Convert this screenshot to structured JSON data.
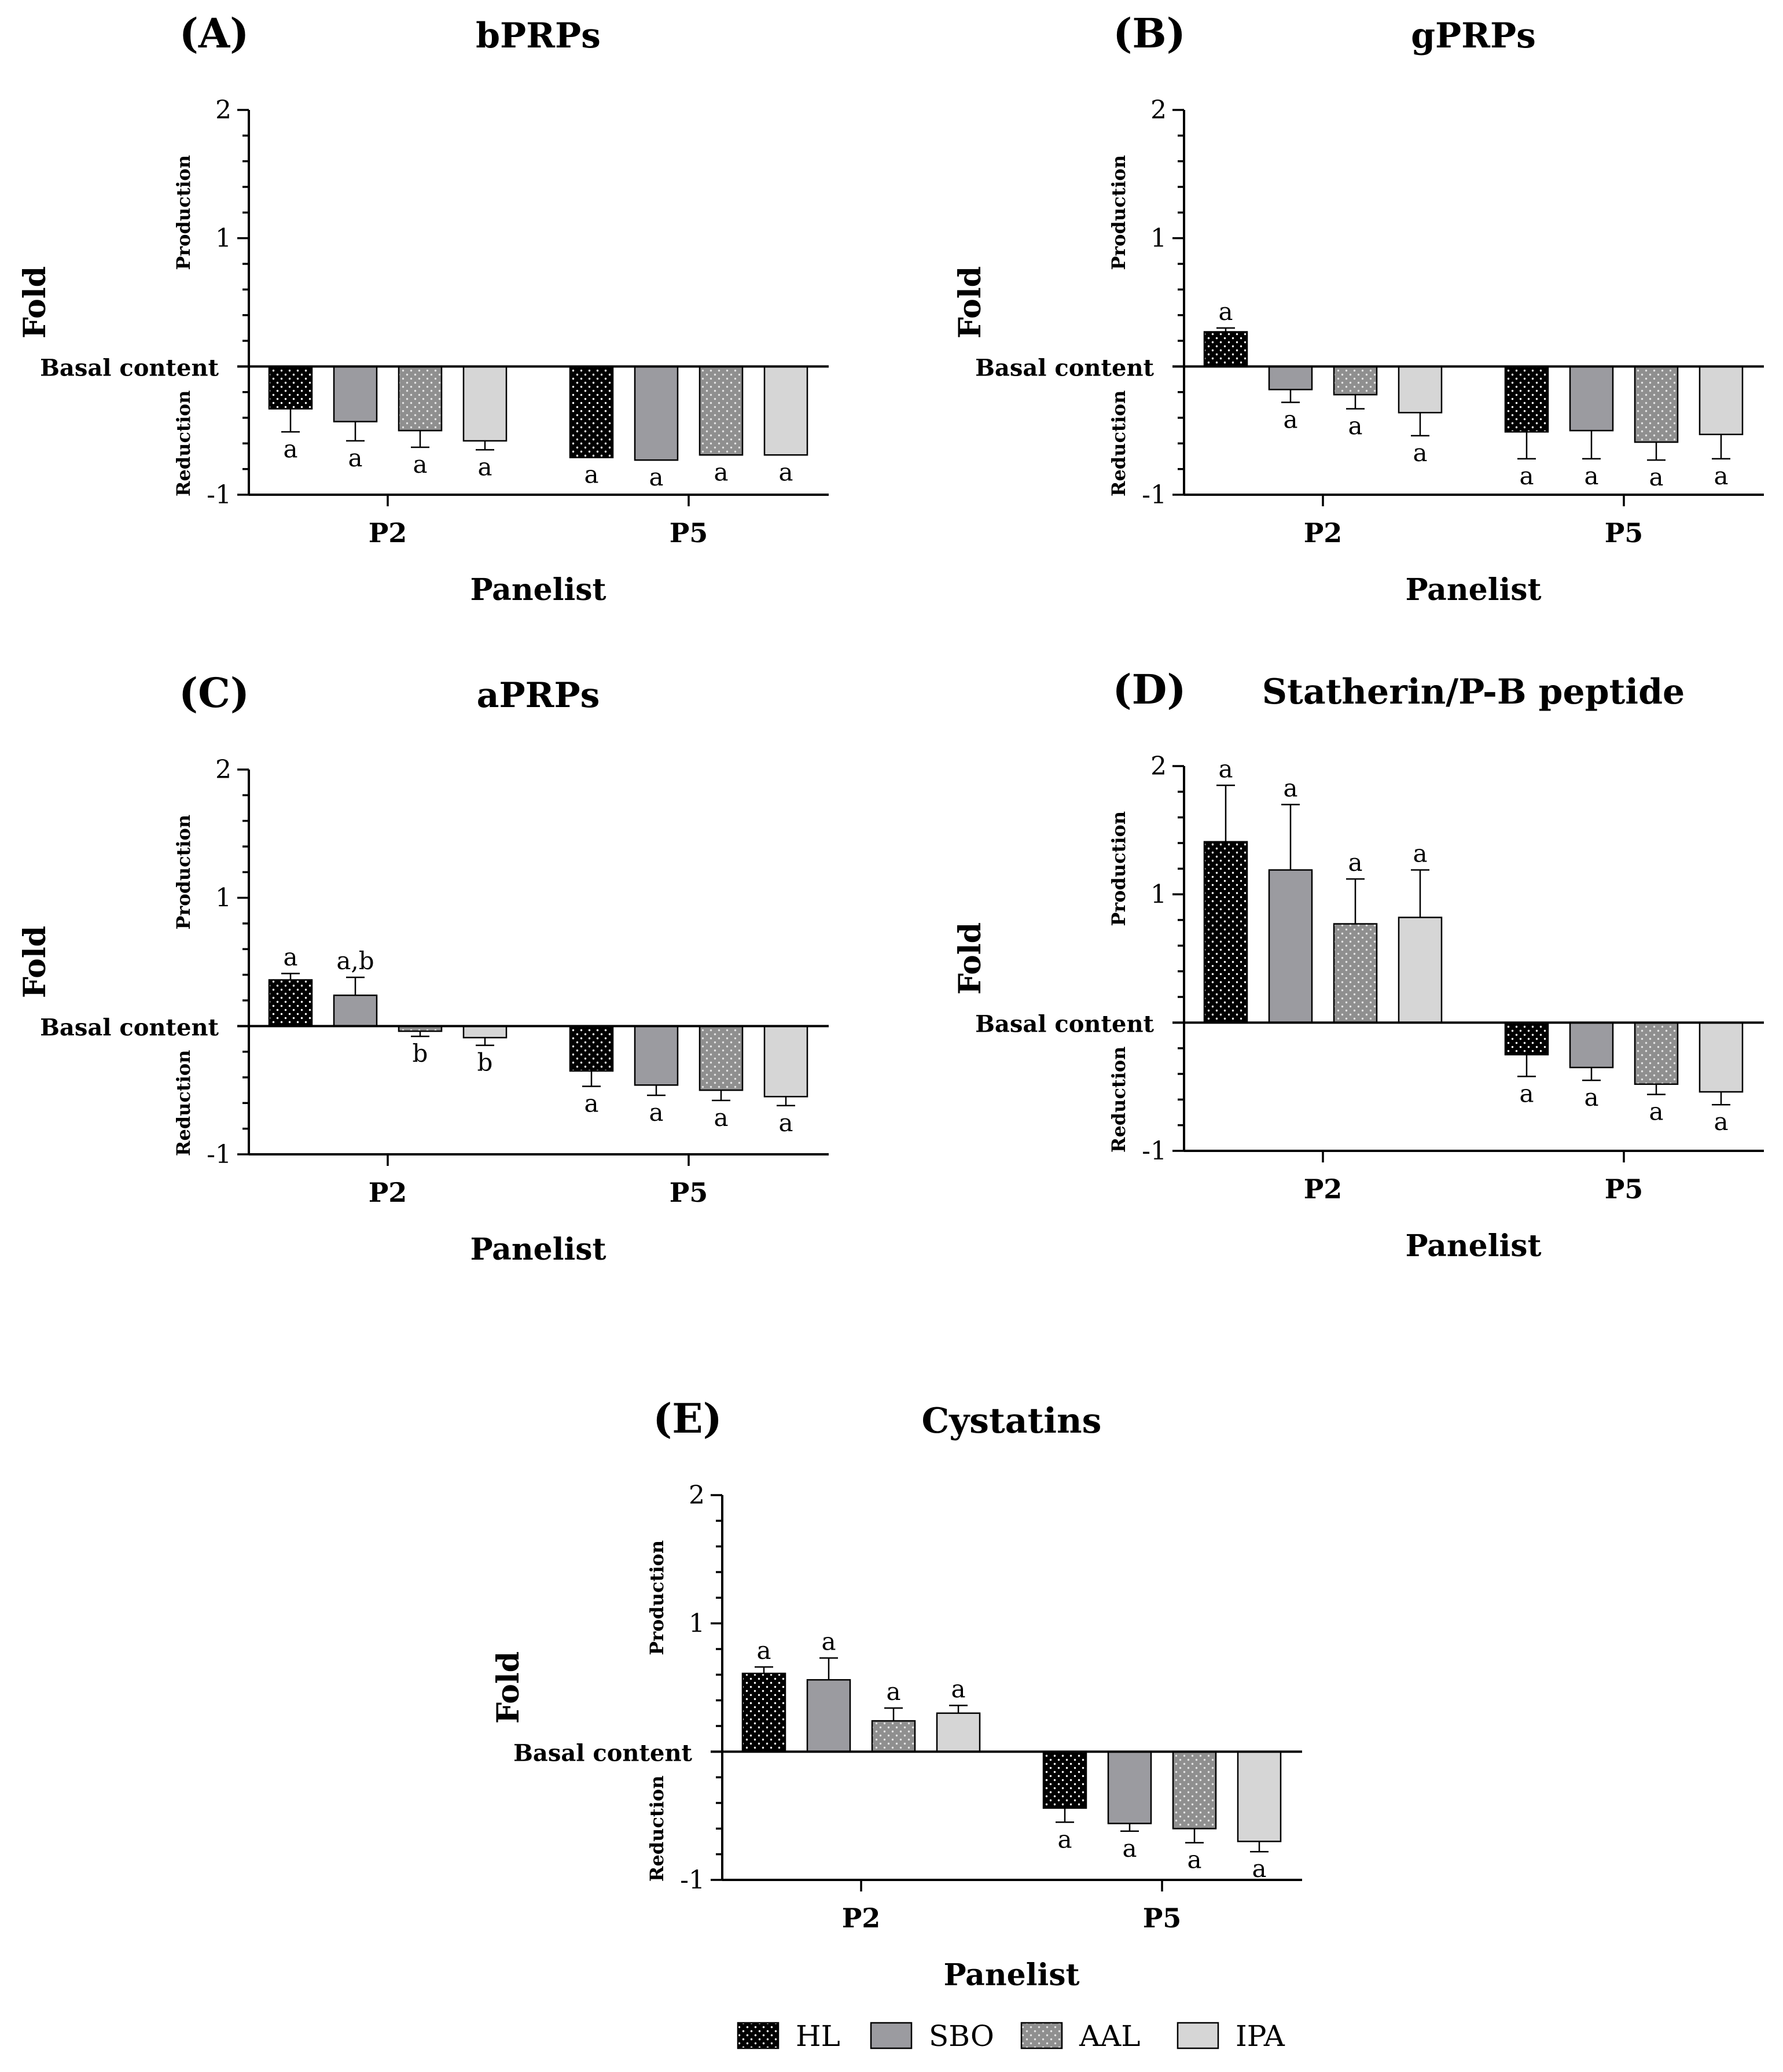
{
  "colors": {
    "HL": "#000000",
    "SBO": "#9b9ba0",
    "AAL": "#8f8f8f",
    "IPA": "#d6d6d6",
    "axis": "#000000",
    "text": "#000000"
  },
  "legend": [
    {
      "key": "HL",
      "label": "HL",
      "pattern": "dots-white-on-black"
    },
    {
      "key": "SBO",
      "label": "SBO",
      "pattern": "solid"
    },
    {
      "key": "AAL",
      "label": "AAL",
      "pattern": "dots-light-on-gray"
    },
    {
      "key": "IPA",
      "label": "IPA",
      "pattern": "solid"
    }
  ],
  "chart_data": [
    {
      "id": "A",
      "panel_label": "(A)",
      "title": "bPRPs",
      "type": "bar",
      "ylabel": "Fold",
      "xlabel": "Panelist",
      "ylim": [
        -1,
        2
      ],
      "yticks": [
        -1,
        1,
        2
      ],
      "baseline_label": "Basal content",
      "upper_label": "Production",
      "lower_label": "Reduction",
      "categories": [
        "P2",
        "P5"
      ],
      "series": [
        {
          "name": "HL",
          "values": [
            -0.33,
            -0.71
          ],
          "errors": [
            0.18,
            0.0
          ],
          "letters": [
            "a",
            "a"
          ]
        },
        {
          "name": "SBO",
          "values": [
            -0.43,
            -0.73
          ],
          "errors": [
            0.15,
            0.0
          ],
          "letters": [
            "a",
            "a"
          ]
        },
        {
          "name": "AAL",
          "values": [
            -0.5,
            -0.69
          ],
          "errors": [
            0.13,
            0.0
          ],
          "letters": [
            "a",
            "a"
          ]
        },
        {
          "name": "IPA",
          "values": [
            -0.58,
            -0.69
          ],
          "errors": [
            0.07,
            0.0
          ],
          "letters": [
            "a",
            "a"
          ]
        }
      ]
    },
    {
      "id": "B",
      "panel_label": "(B)",
      "title": "gPRPs",
      "type": "bar",
      "ylabel": "Fold",
      "xlabel": "Panelist",
      "ylim": [
        -1,
        2
      ],
      "yticks": [
        -1,
        1,
        2
      ],
      "baseline_label": "Basal content",
      "upper_label": "Production",
      "lower_label": "Reduction",
      "categories": [
        "P2",
        "P5"
      ],
      "series": [
        {
          "name": "HL",
          "values": [
            0.27,
            -0.51
          ],
          "errors": [
            0.03,
            0.21
          ],
          "letters": [
            "a",
            "a"
          ]
        },
        {
          "name": "SBO",
          "values": [
            -0.18,
            -0.5
          ],
          "errors": [
            0.1,
            0.22
          ],
          "letters": [
            "a",
            "a"
          ]
        },
        {
          "name": "AAL",
          "values": [
            -0.22,
            -0.59
          ],
          "errors": [
            0.11,
            0.14
          ],
          "letters": [
            "a",
            "a"
          ]
        },
        {
          "name": "IPA",
          "values": [
            -0.36,
            -0.53
          ],
          "errors": [
            0.18,
            0.19
          ],
          "letters": [
            "a",
            "a"
          ]
        }
      ]
    },
    {
      "id": "C",
      "panel_label": "(C)",
      "title": "aPRPs",
      "type": "bar",
      "ylabel": "Fold",
      "xlabel": "Panelist",
      "ylim": [
        -1,
        2
      ],
      "yticks": [
        -1,
        1,
        2
      ],
      "baseline_label": "Basal content",
      "upper_label": "Production",
      "lower_label": "Reduction",
      "categories": [
        "P2",
        "P5"
      ],
      "series": [
        {
          "name": "HL",
          "values": [
            0.36,
            -0.35
          ],
          "errors": [
            0.05,
            0.12
          ],
          "letters": [
            "a",
            "a"
          ]
        },
        {
          "name": "SBO",
          "values": [
            0.24,
            -0.46
          ],
          "errors": [
            0.14,
            0.08
          ],
          "letters": [
            "a,b",
            "a"
          ]
        },
        {
          "name": "AAL",
          "values": [
            -0.04,
            -0.5
          ],
          "errors": [
            0.04,
            0.08
          ],
          "letters": [
            "b",
            "a"
          ]
        },
        {
          "name": "IPA",
          "values": [
            -0.09,
            -0.55
          ],
          "errors": [
            0.06,
            0.07
          ],
          "letters": [
            "b",
            "a"
          ]
        }
      ]
    },
    {
      "id": "D",
      "panel_label": "(D)",
      "title": "Statherin/P-B peptide",
      "type": "bar",
      "ylabel": "Fold",
      "xlabel": "Panelist",
      "ylim": [
        -1,
        2
      ],
      "yticks": [
        -1,
        1,
        2
      ],
      "baseline_label": "Basal content",
      "upper_label": "Production",
      "lower_label": "Reduction",
      "categories": [
        "P2",
        "P5"
      ],
      "series": [
        {
          "name": "HL",
          "values": [
            1.41,
            -0.25
          ],
          "errors": [
            0.44,
            0.17
          ],
          "letters": [
            "a",
            "a"
          ]
        },
        {
          "name": "SBO",
          "values": [
            1.19,
            -0.35
          ],
          "errors": [
            0.51,
            0.1
          ],
          "letters": [
            "a",
            "a"
          ]
        },
        {
          "name": "AAL",
          "values": [
            0.77,
            -0.48
          ],
          "errors": [
            0.35,
            0.08
          ],
          "letters": [
            "a",
            "a"
          ]
        },
        {
          "name": "IPA",
          "values": [
            0.82,
            -0.54
          ],
          "errors": [
            0.37,
            0.1
          ],
          "letters": [
            "a",
            "a"
          ]
        }
      ]
    },
    {
      "id": "E",
      "panel_label": "(E)",
      "title": "Cystatins",
      "type": "bar",
      "ylabel": "Fold",
      "xlabel": "Panelist",
      "ylim": [
        -1,
        2
      ],
      "yticks": [
        -1,
        1,
        2
      ],
      "baseline_label": "Basal content",
      "upper_label": "Production",
      "lower_label": "Reduction",
      "categories": [
        "P2",
        "P5"
      ],
      "series": [
        {
          "name": "HL",
          "values": [
            0.61,
            -0.44
          ],
          "errors": [
            0.05,
            0.11
          ],
          "letters": [
            "a",
            "a"
          ]
        },
        {
          "name": "SBO",
          "values": [
            0.56,
            -0.56
          ],
          "errors": [
            0.17,
            0.06
          ],
          "letters": [
            "a",
            "a"
          ]
        },
        {
          "name": "AAL",
          "values": [
            0.24,
            -0.6
          ],
          "errors": [
            0.1,
            0.11
          ],
          "letters": [
            "a",
            "a"
          ]
        },
        {
          "name": "IPA",
          "values": [
            0.3,
            -0.7
          ],
          "errors": [
            0.06,
            0.08
          ],
          "letters": [
            "a",
            "a"
          ]
        }
      ]
    }
  ]
}
